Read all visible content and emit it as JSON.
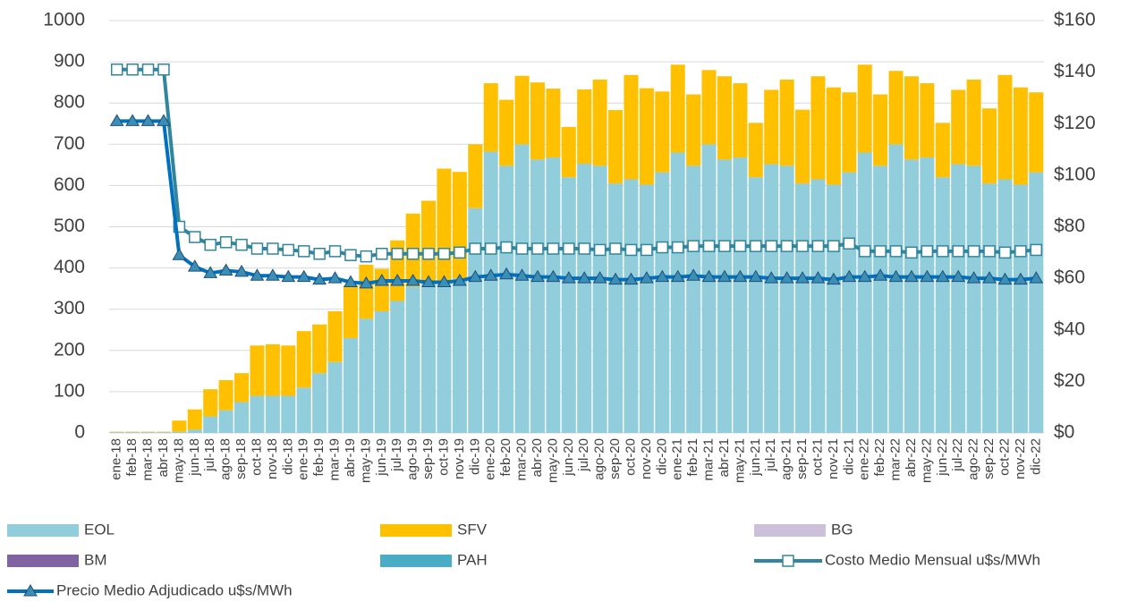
{
  "chart_data": {
    "type": "bar",
    "stacked": true,
    "grid": true,
    "legend": "bottom",
    "categories": [
      "ene-18",
      "feb-18",
      "mar-18",
      "abr-18",
      "may-18",
      "jun-18",
      "jul-18",
      "ago-18",
      "sep-18",
      "oct-18",
      "nov-18",
      "dic-18",
      "ene-19",
      "feb-19",
      "mar-19",
      "abr-19",
      "may-19",
      "jun-19",
      "jul-19",
      "ago-19",
      "sep-19",
      "oct-19",
      "nov-19",
      "dic-19",
      "ene-20",
      "feb-20",
      "mar-20",
      "abr-20",
      "may-20",
      "jun-20",
      "jul-20",
      "ago-20",
      "sep-20",
      "oct-20",
      "nov-20",
      "dic-20",
      "ene-21",
      "feb-21",
      "mar-21",
      "abr-21",
      "may-21",
      "jun-21",
      "jul-21",
      "ago-21",
      "sep-21",
      "oct-21",
      "nov-21",
      "dic-21",
      "ene-22",
      "feb-22",
      "mar-22",
      "abr-22",
      "may-22",
      "jun-22",
      "jul-22",
      "ago-22",
      "sep-22",
      "oct-22",
      "nov-22",
      "dic-22"
    ],
    "ylim": [
      0,
      1000
    ],
    "yticks": [
      0,
      100,
      200,
      300,
      400,
      500,
      600,
      700,
      800,
      900,
      1000
    ],
    "y2lim": [
      0,
      160
    ],
    "y2ticks": [
      {
        "value": 0,
        "label": "$0"
      },
      {
        "value": 20,
        "label": "$20"
      },
      {
        "value": 40,
        "label": "$40"
      },
      {
        "value": 60,
        "label": "$60"
      },
      {
        "value": 80,
        "label": "$80"
      },
      {
        "value": 100,
        "label": "$100"
      },
      {
        "value": 120,
        "label": "$120"
      },
      {
        "value": 140,
        "label": "$140"
      },
      {
        "value": 160,
        "label": "$160"
      }
    ],
    "series": [
      {
        "name": "EOL",
        "type": "bar",
        "color": "#92cddc",
        "values": [
          2,
          2,
          2,
          2,
          3,
          8,
          40,
          55,
          75,
          90,
          90,
          90,
          110,
          145,
          172,
          230,
          277,
          295,
          320,
          355,
          365,
          370,
          375,
          545,
          682,
          648,
          700,
          663,
          668,
          620,
          653,
          648,
          605,
          615,
          602,
          632,
          680,
          648,
          700,
          663,
          668,
          620,
          652,
          648,
          605,
          615,
          602,
          632,
          680,
          648,
          700,
          663,
          668,
          620,
          652,
          648,
          605,
          615,
          602,
          632
        ]
      },
      {
        "name": "SFV",
        "type": "bar",
        "color": "#ffc000",
        "values": [
          1,
          1,
          1,
          1,
          27,
          49,
          66,
          73,
          70,
          122,
          125,
          122,
          137,
          118,
          123,
          128,
          131,
          103,
          147,
          177,
          198,
          271,
          258,
          155,
          166,
          160,
          166,
          187,
          167,
          122,
          180,
          209,
          178,
          253,
          234,
          196,
          213,
          173,
          180,
          202,
          180,
          132,
          180,
          209,
          179,
          250,
          236,
          194,
          213,
          173,
          178,
          202,
          180,
          132,
          180,
          209,
          182,
          253,
          236,
          194
        ]
      },
      {
        "name": "BG",
        "type": "bar",
        "color": "#ccc0da",
        "values": [
          0,
          0,
          0,
          0,
          0,
          0,
          0,
          0,
          0,
          0,
          0,
          0,
          0,
          0,
          0,
          0,
          0,
          0,
          0,
          0,
          0,
          0,
          0,
          0,
          0,
          0,
          0,
          0,
          0,
          0,
          0,
          0,
          0,
          0,
          0,
          0,
          0,
          0,
          0,
          0,
          0,
          0,
          0,
          0,
          0,
          0,
          0,
          0,
          0,
          0,
          0,
          0,
          0,
          0,
          0,
          0,
          0,
          0,
          0,
          0
        ]
      },
      {
        "name": "BM",
        "type": "bar",
        "color": "#8064a2",
        "values": [
          0,
          0,
          0,
          0,
          0,
          0,
          0,
          0,
          0,
          0,
          0,
          0,
          0,
          0,
          0,
          0,
          0,
          0,
          0,
          0,
          0,
          0,
          0,
          0,
          0,
          0,
          0,
          0,
          0,
          0,
          0,
          0,
          0,
          0,
          0,
          0,
          0,
          0,
          0,
          0,
          0,
          0,
          0,
          0,
          0,
          0,
          0,
          0,
          0,
          0,
          0,
          0,
          0,
          0,
          0,
          0,
          0,
          0,
          0,
          0
        ]
      },
      {
        "name": "PAH",
        "type": "bar",
        "color": "#4bacc6",
        "values": [
          0,
          0,
          0,
          0,
          0,
          0,
          0,
          0,
          0,
          0,
          0,
          0,
          0,
          0,
          0,
          0,
          0,
          0,
          0,
          0,
          0,
          0,
          0,
          0,
          0,
          0,
          0,
          0,
          0,
          0,
          0,
          0,
          0,
          0,
          0,
          0,
          0,
          0,
          0,
          0,
          0,
          0,
          0,
          0,
          0,
          0,
          0,
          0,
          0,
          0,
          0,
          0,
          0,
          0,
          0,
          0,
          0,
          0,
          0,
          0
        ]
      },
      {
        "name": "Costo Medio Mensual u$s/MWh",
        "type": "line",
        "axis": "y2",
        "color": "#31859c",
        "marker": "square",
        "values": [
          141,
          141,
          141,
          141,
          80,
          76,
          73,
          74,
          73,
          71.5,
          71.5,
          71,
          70.5,
          69.5,
          70.5,
          69,
          68.5,
          69.5,
          69.5,
          69.5,
          69.5,
          69.5,
          70,
          71.5,
          71.5,
          72,
          71.5,
          71.5,
          71.5,
          71.5,
          71.5,
          71,
          71.5,
          71,
          71,
          72,
          72,
          72.5,
          72.5,
          72.5,
          72.5,
          72.5,
          72.5,
          72.5,
          72.5,
          72.5,
          72.5,
          73.5,
          70.5,
          70.5,
          70.5,
          70,
          70.5,
          70.5,
          70.5,
          70.5,
          70.5,
          70,
          70.5,
          71
        ]
      },
      {
        "name": "Precio Medio Adjudicado u$s/MWh",
        "type": "line",
        "axis": "y2",
        "color": "#0070c0",
        "marker": "triangle",
        "values": [
          121,
          121,
          121,
          121,
          69,
          64.5,
          62,
          63,
          62.5,
          61,
          61,
          60.5,
          60.5,
          59.5,
          60,
          58.5,
          58,
          59,
          59,
          59,
          58.5,
          58.5,
          59,
          60.5,
          61,
          61.5,
          61,
          60.5,
          60.5,
          60,
          60,
          60,
          59.5,
          59.5,
          60,
          60.5,
          60.5,
          61,
          60.5,
          60.5,
          60.5,
          60.5,
          60,
          60,
          60,
          60,
          59.5,
          60.5,
          60.5,
          61,
          60.5,
          60.5,
          60.5,
          60.5,
          60.5,
          60,
          60,
          59.5,
          59.5,
          60
        ]
      }
    ]
  }
}
